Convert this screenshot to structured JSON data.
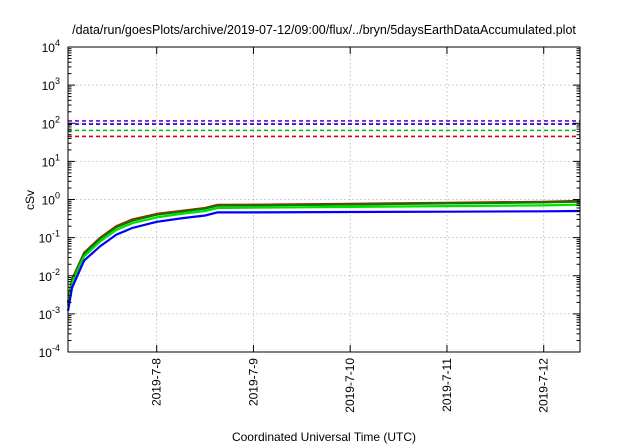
{
  "chart_data": {
    "type": "line",
    "title": "/data/run/goesPlots/archive/2019-07-12/09:00/flux/../bryn/5daysEarthDataAccumulated.plot",
    "xlabel": "Coordinated Universal Time (UTC)",
    "ylabel": "cSv",
    "yscale": "log",
    "ylim": [
      0.0001,
      10000
    ],
    "xlim": [
      "2019-07-07T02:00",
      "2019-07-12T09:00"
    ],
    "grid": true,
    "legend": "none",
    "ytick_labels": [
      "10-4",
      "10-3",
      "10-2",
      "10-1",
      "100",
      "101",
      "102",
      "103",
      "104"
    ],
    "xtick_labels": [
      "2019-7-8",
      "2019-7-9",
      "2019-7-10",
      "2019-7-11",
      "2019-7-12"
    ],
    "thresholds": [
      {
        "y": 45,
        "color": "#e00000",
        "style": "dashed"
      },
      {
        "y": 65,
        "color": "#00c000",
        "style": "dashed"
      },
      {
        "y": 95,
        "color": "#0000e0",
        "style": "dashed"
      },
      {
        "y": 115,
        "color": "#8000c0",
        "style": "dashed"
      }
    ],
    "x": [
      "2019-07-07T02:00",
      "2019-07-07T03:00",
      "2019-07-07T06:00",
      "2019-07-07T10:00",
      "2019-07-07T14:00",
      "2019-07-07T18:00",
      "2019-07-08T00:00",
      "2019-07-08T06:00",
      "2019-07-08T12:00",
      "2019-07-08T15:00",
      "2019-07-09T00:00",
      "2019-07-10T00:00",
      "2019-07-11T00:00",
      "2019-07-12T00:00",
      "2019-07-12T09:00"
    ],
    "series": [
      {
        "color": "#e00000",
        "values": [
          0.002,
          0.008,
          0.04,
          0.1,
          0.2,
          0.3,
          0.42,
          0.5,
          0.6,
          0.72,
          0.73,
          0.77,
          0.82,
          0.87,
          0.92
        ]
      },
      {
        "color": "#008000",
        "values": [
          0.0019,
          0.0075,
          0.038,
          0.095,
          0.19,
          0.28,
          0.4,
          0.48,
          0.58,
          0.69,
          0.7,
          0.74,
          0.79,
          0.84,
          0.88
        ]
      },
      {
        "color": "#00e000",
        "values": [
          0.0016,
          0.0065,
          0.032,
          0.08,
          0.16,
          0.24,
          0.34,
          0.42,
          0.5,
          0.6,
          0.61,
          0.64,
          0.67,
          0.7,
          0.73
        ]
      },
      {
        "color": "#0000ff",
        "values": [
          0.0012,
          0.0048,
          0.025,
          0.06,
          0.12,
          0.18,
          0.26,
          0.32,
          0.38,
          0.46,
          0.46,
          0.47,
          0.48,
          0.49,
          0.5
        ]
      }
    ]
  }
}
